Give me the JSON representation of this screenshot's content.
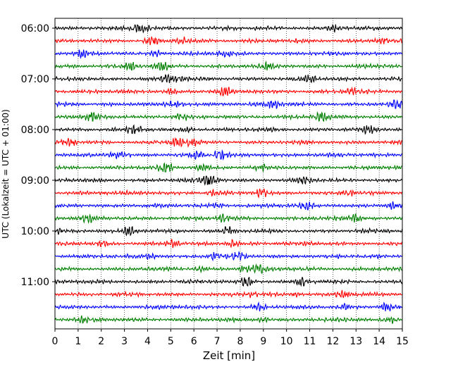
{
  "chart_data": {
    "type": "line",
    "subtype": "seismogram-helicorder",
    "xlabel": "Zeit  [min]",
    "ylabel": "UTC (Lokalzeit = UTC + 01:00)",
    "xlim": [
      0,
      15
    ],
    "x_ticks": [
      "0",
      "1",
      "2",
      "3",
      "4",
      "5",
      "6",
      "7",
      "8",
      "9",
      "10",
      "11",
      "12",
      "13",
      "14",
      "15"
    ],
    "y_tick_labels": [
      "06:00",
      "07:00",
      "08:00",
      "09:00",
      "10:00",
      "11:00"
    ],
    "y_tick_label_rows": [
      0,
      4,
      8,
      12,
      16,
      20
    ],
    "grid": "vertical dotted at each minute",
    "trace_interval_minutes": 15,
    "start_time": "06:00",
    "trace_count": 24,
    "colors": [
      "#000000",
      "#ff0000",
      "#0000ff",
      "#008000"
    ]
  }
}
